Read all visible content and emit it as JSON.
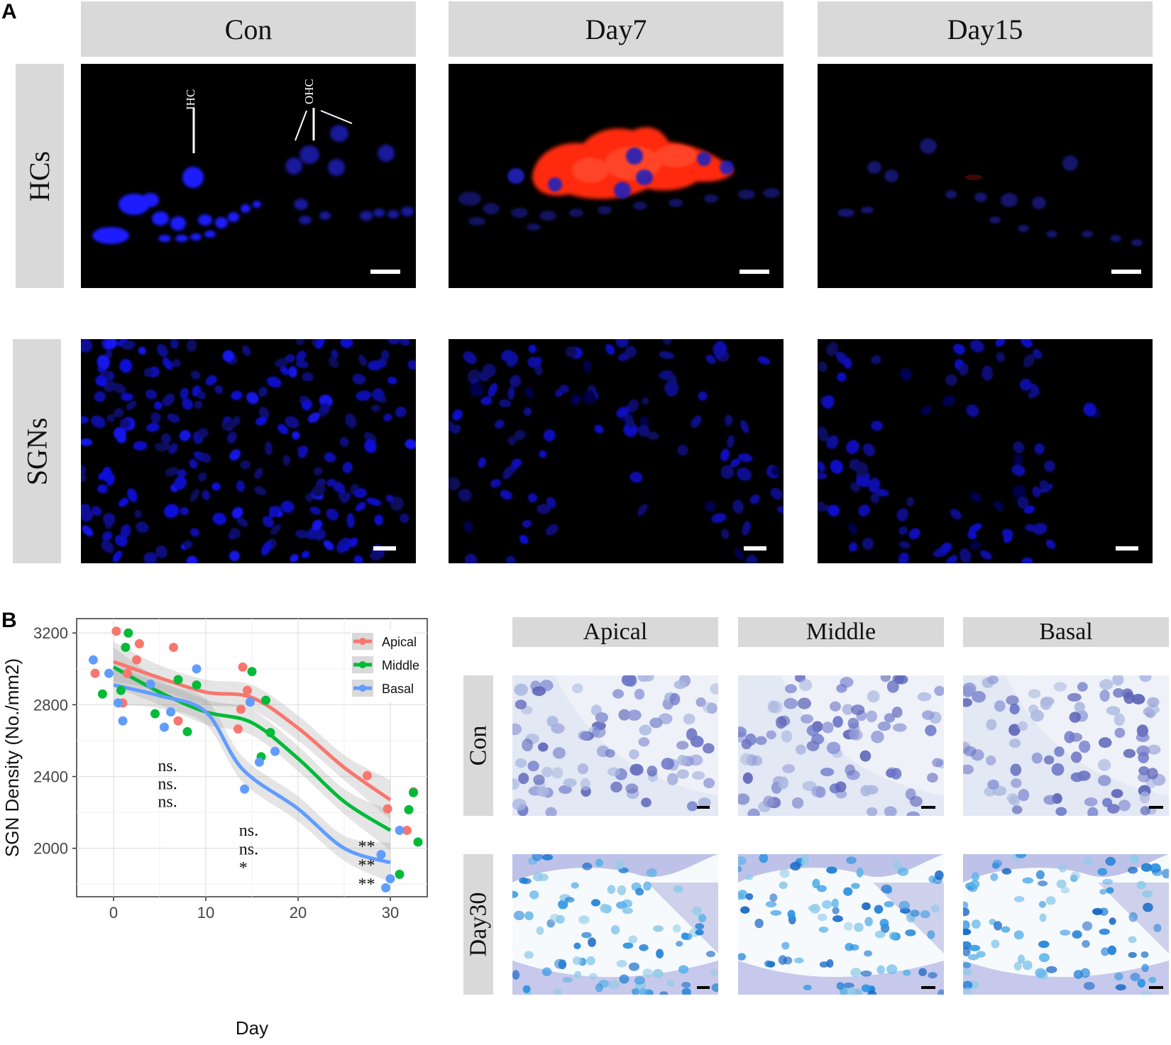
{
  "panel_a": {
    "letter": "A",
    "columns": [
      "Con",
      "Day7",
      "Day15"
    ],
    "rows": [
      "HCs",
      "SGNs"
    ],
    "annotations": {
      "ihc": "IHC",
      "ohc": "OHC"
    }
  },
  "panel_b": {
    "letter": "B",
    "histology": {
      "columns": [
        "Apical",
        "Middle",
        "Basal"
      ],
      "rows": [
        "Con",
        "Day30"
      ]
    }
  },
  "colors": {
    "apical": "#f8766d",
    "middle": "#00ba38",
    "basal": "#619cff",
    "dapi": "#1a1aff",
    "stain": "#ff2a10"
  },
  "chart_data": {
    "type": "scatter",
    "xlabel": "Day",
    "ylabel": "SGN Density (No./mm2)",
    "xlim": [
      -4,
      34
    ],
    "ylim": [
      1730,
      3280
    ],
    "x_ticks": [
      0,
      10,
      20,
      30
    ],
    "y_ticks": [
      2000,
      2400,
      2800,
      3200
    ],
    "grid": true,
    "legend_position": "top-right",
    "series": [
      {
        "name": "Apical",
        "points": [
          [
            -2,
            2975
          ],
          [
            0.3,
            3210
          ],
          [
            1,
            2810
          ],
          [
            1.5,
            2975
          ],
          [
            2.5,
            3050
          ],
          [
            2.8,
            3140
          ],
          [
            6.5,
            3120
          ],
          [
            7,
            2710
          ],
          [
            13.5,
            2665
          ],
          [
            13.8,
            2775
          ],
          [
            14,
            3010
          ],
          [
            14.5,
            2880
          ],
          [
            27.5,
            2405
          ],
          [
            29.7,
            2220
          ],
          [
            31.8,
            2100
          ],
          [
            32.5,
            2315
          ]
        ],
        "smooth": [
          [
            0,
            3040
          ],
          [
            5,
            2950
          ],
          [
            10,
            2870
          ],
          [
            15,
            2840
          ],
          [
            20,
            2670
          ],
          [
            25,
            2450
          ],
          [
            30,
            2270
          ]
        ]
      },
      {
        "name": "Middle",
        "points": [
          [
            -1.2,
            2860
          ],
          [
            0.8,
            2880
          ],
          [
            1.3,
            3120
          ],
          [
            1.6,
            3200
          ],
          [
            4.5,
            2750
          ],
          [
            7,
            2940
          ],
          [
            8,
            2650
          ],
          [
            9,
            2910
          ],
          [
            15,
            2985
          ],
          [
            16,
            2510
          ],
          [
            16.5,
            2825
          ],
          [
            17,
            2645
          ],
          [
            31,
            1855
          ],
          [
            32,
            2215
          ],
          [
            32.5,
            2310
          ],
          [
            33,
            2035
          ]
        ],
        "smooth": [
          [
            0,
            3010
          ],
          [
            5,
            2870
          ],
          [
            10,
            2760
          ],
          [
            15,
            2700
          ],
          [
            20,
            2500
          ],
          [
            25,
            2260
          ],
          [
            30,
            2100
          ]
        ]
      },
      {
        "name": "Basal",
        "points": [
          [
            -2.2,
            3050
          ],
          [
            -0.5,
            2975
          ],
          [
            0.5,
            2810
          ],
          [
            1,
            2710
          ],
          [
            4,
            2915
          ],
          [
            5.5,
            2675
          ],
          [
            6.2,
            2760
          ],
          [
            9,
            3000
          ],
          [
            14.2,
            2330
          ],
          [
            14.8,
            2815
          ],
          [
            15.8,
            2480
          ],
          [
            17.5,
            2540
          ],
          [
            29,
            1965
          ],
          [
            29.5,
            1780
          ],
          [
            30,
            1830
          ],
          [
            31,
            2100
          ]
        ],
        "smooth": [
          [
            0,
            2910
          ],
          [
            5,
            2850
          ],
          [
            10,
            2760
          ],
          [
            14,
            2440
          ],
          [
            20,
            2220
          ],
          [
            25,
            2000
          ],
          [
            30,
            1920
          ]
        ]
      }
    ],
    "annotations": [
      {
        "x": 4.8,
        "lines": [
          "ns.",
          "ns.",
          "ns."
        ]
      },
      {
        "x": 13.6,
        "lines": [
          "ns.",
          "ns.",
          "*"
        ]
      },
      {
        "x": 26.5,
        "lines": [
          "**",
          "**",
          "**"
        ]
      }
    ]
  }
}
